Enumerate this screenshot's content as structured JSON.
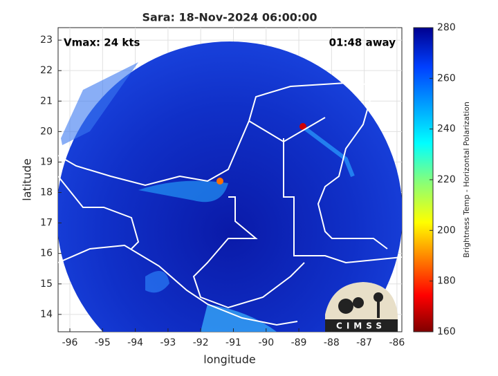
{
  "title": "Sara: 18-Nov-2024 06:00:00",
  "annotations": {
    "vmax": "Vmax: 24 kts",
    "away": "01:48 away"
  },
  "axes": {
    "xlabel": "longitude",
    "ylabel": "latitude",
    "xlim": [
      -96.36,
      -85.85
    ],
    "ylim": [
      13.43,
      23.41
    ],
    "xticks": [
      -96,
      -95,
      -94,
      -93,
      -92,
      -91,
      -90,
      -89,
      -88,
      -87,
      -86
    ],
    "yticks": [
      14,
      15,
      16,
      17,
      18,
      19,
      20,
      21,
      22,
      23
    ],
    "grid": true
  },
  "colorbar": {
    "label": "Brightness Temp - Horizontal Polarization",
    "lim": [
      160,
      280
    ],
    "ticks": [
      160,
      180,
      200,
      220,
      240,
      260,
      280
    ]
  },
  "logo": {
    "text": "CIMSS"
  }
}
